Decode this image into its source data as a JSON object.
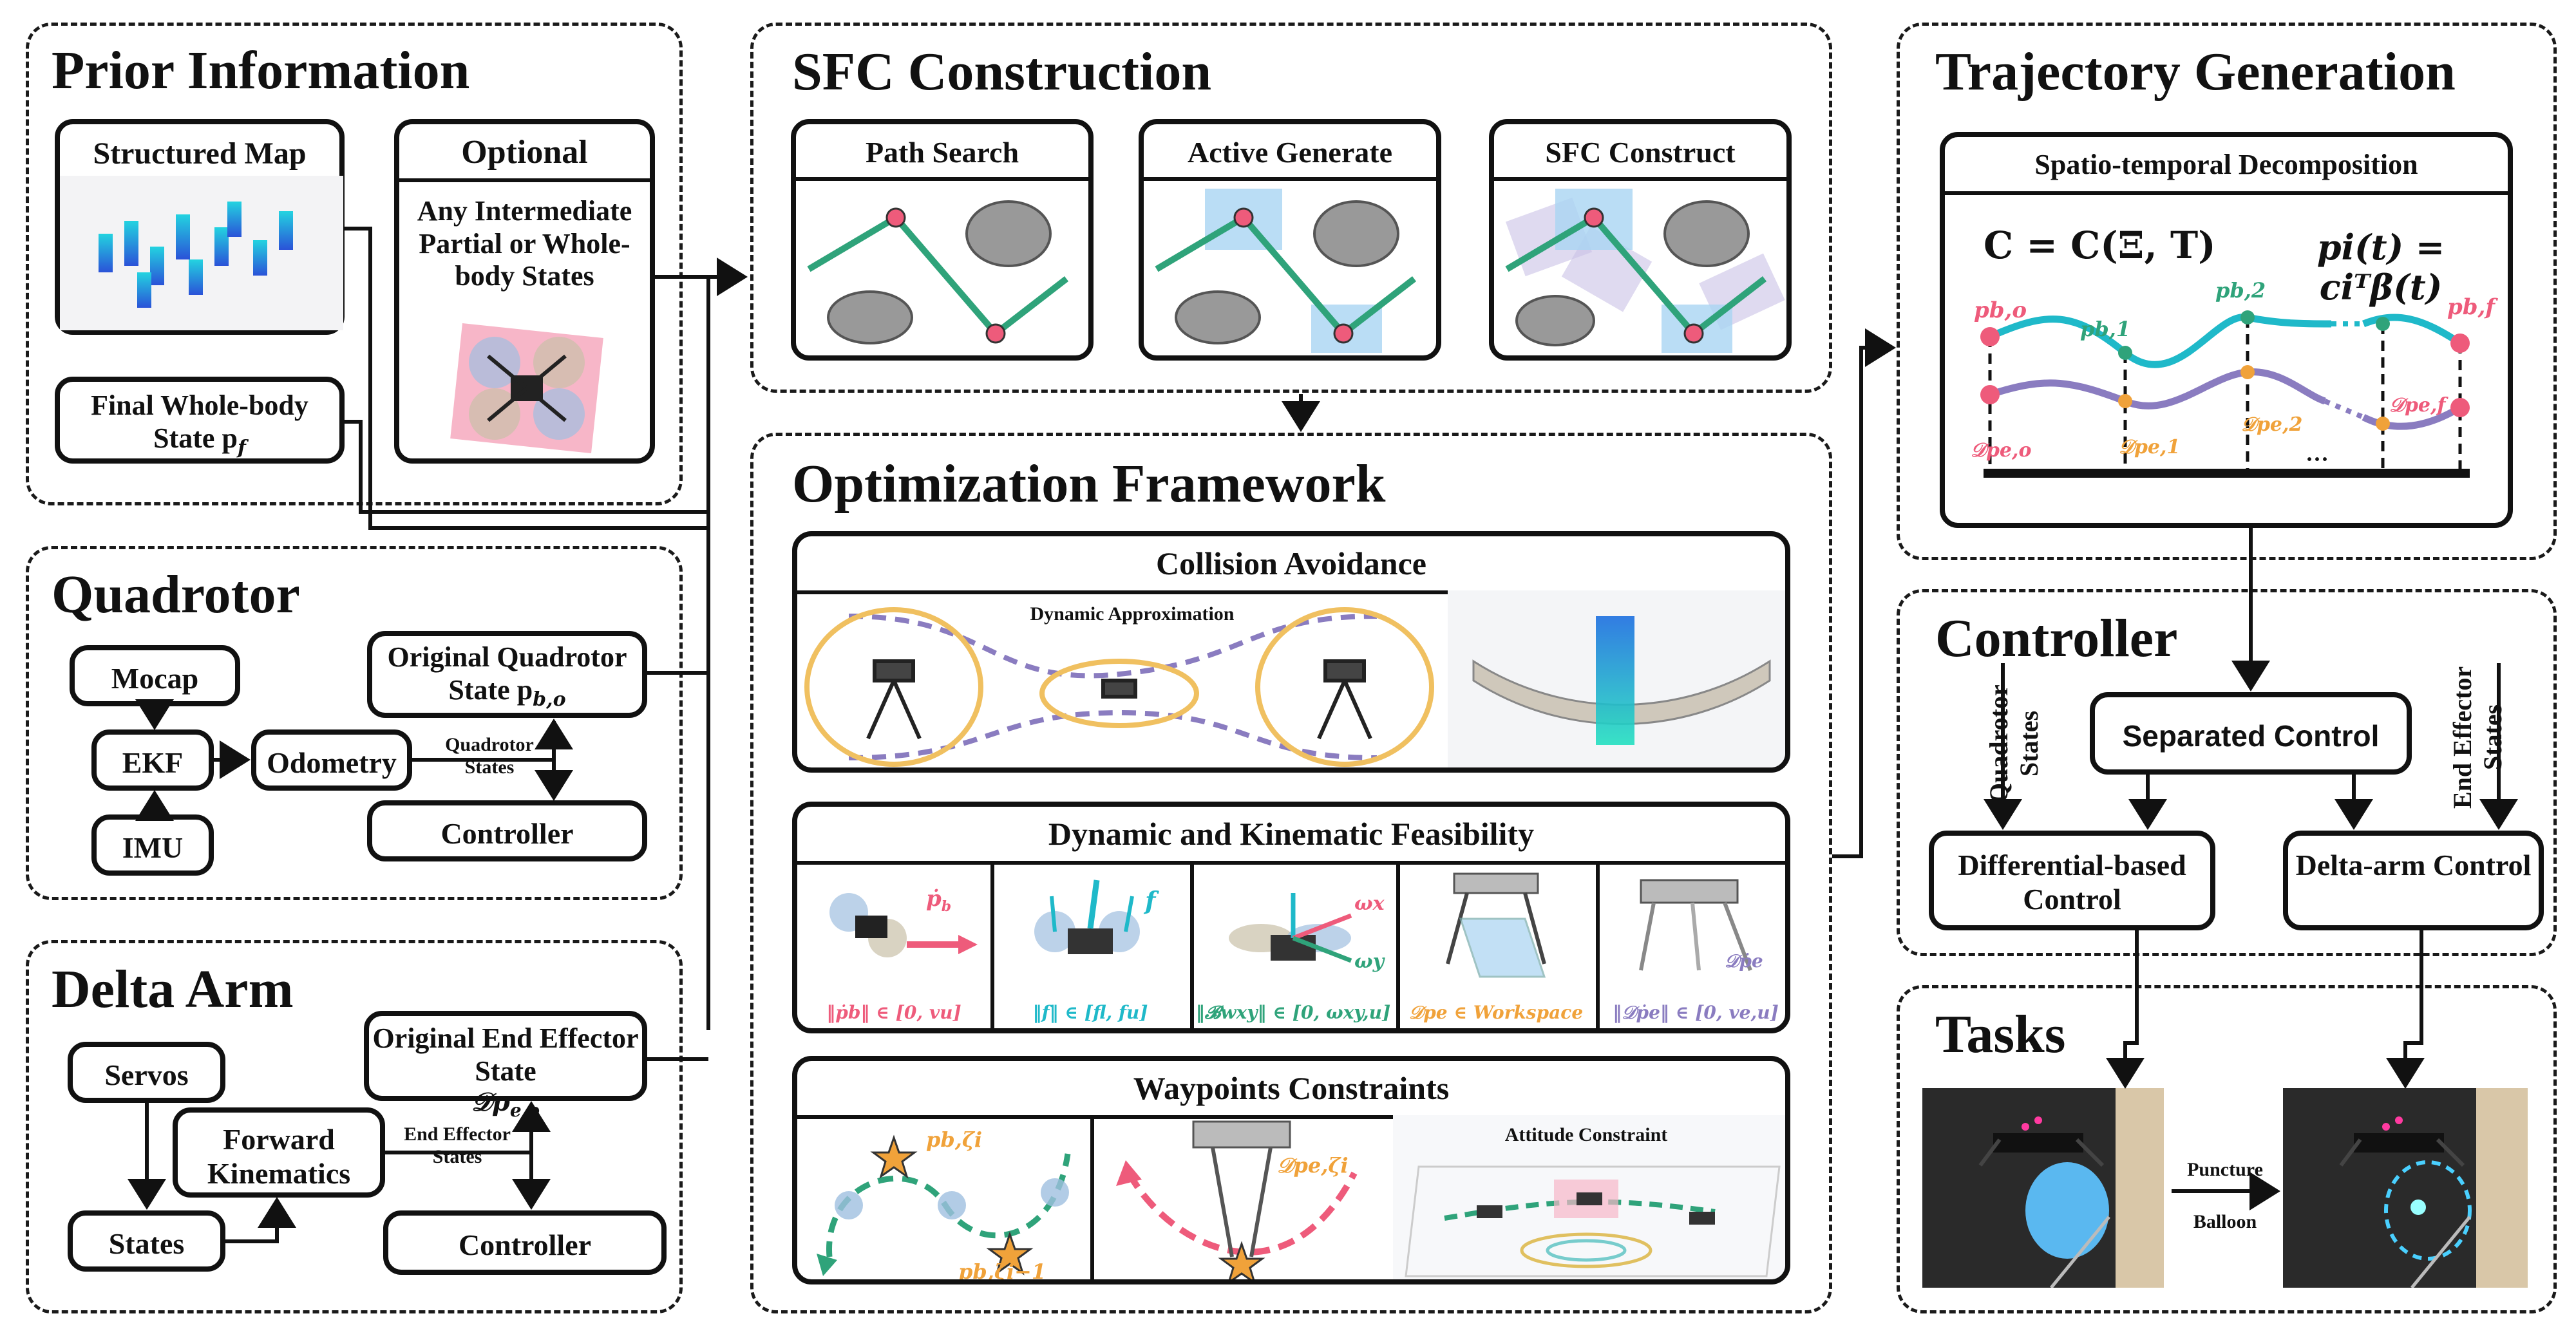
{
  "sections": {
    "prior": {
      "title": "Prior Information",
      "structured_map": "Structured Map",
      "optional": "Optional",
      "optional_body": "Any Intermediate Partial or Whole-body States",
      "final_state": "Final Whole-body State p",
      "final_state_sub": "f"
    },
    "quadrotor": {
      "title": "Quadrotor",
      "mocap": "Mocap",
      "ekf": "EKF",
      "imu": "IMU",
      "odometry": "Odometry",
      "original_state": "Original Quadrotor State p",
      "original_state_sub": "b,o",
      "edge_label_1": "Quadrotor",
      "edge_label_2": "States",
      "controller": "Controller"
    },
    "delta": {
      "title": "Delta Arm",
      "servos": "Servos",
      "forward": "Forward Kinematics",
      "states": "States",
      "original_end": "Original End Effector State",
      "original_end_sym": "𝒟p",
      "original_end_sub": "e,o",
      "edge_label_1": "End Effector",
      "edge_label_2": "States",
      "controller": "Controller"
    },
    "sfc": {
      "title": "SFC Construction",
      "panels": [
        "Path Search",
        "Active Generate",
        "SFC Construct"
      ]
    },
    "opt": {
      "title": "Optimization Framework",
      "collision": {
        "title": "Collision Avoidance",
        "label": "Dynamic Approximation"
      },
      "feasibility": {
        "title": "Dynamic and Kinematic Feasibility",
        "cells": [
          {
            "sym": "ṗ",
            "sub": "b",
            "constraint": "‖ṗb‖ ∈ [0, vu]"
          },
          {
            "sym": "f",
            "sub": "",
            "constraint": "‖f‖ ∈ [fl, fu]"
          },
          {
            "sym": "ωx",
            "sub": "ωy",
            "constraint": "‖𝓑wxy‖ ∈ [0, ωxy,u]"
          },
          {
            "sym": "",
            "sub": "",
            "constraint": "𝒟pe ∈ Workspace"
          },
          {
            "sym": "𝒟ṗe",
            "sub": "",
            "constraint": "‖𝒟ṗe‖ ∈ [0, ve,u]"
          }
        ]
      },
      "waypoints": {
        "title": "Waypoints Constraints",
        "label_top": "pb,ζi",
        "label_bottom": "pb,ζi−1",
        "label_mid": "𝒟pe,ζi",
        "attitude": "Attitude Constraint"
      }
    },
    "traj": {
      "title": "Trajectory Generation",
      "panel_title": "Spatio-temporal Decomposition",
      "eq_left": "C = C(Ξ, T)",
      "eq_right": "pi(t) = ciᵀβ(t)",
      "labels_top": [
        "pb,o",
        "pb,1",
        "pb,2",
        "pb,f"
      ],
      "labels_bottom": [
        "𝒟pe,o",
        "𝒟pe,1",
        "𝒟pe,2",
        "𝒟pe,f"
      ],
      "ellipsis": "···"
    },
    "controller": {
      "title": "Controller",
      "separated": "Separated Control",
      "differential": "Differential-based Control",
      "delta": "Delta-arm Control",
      "left_vert": "Quadrotor States",
      "right_vert": "End Effector States"
    },
    "tasks": {
      "title": "Tasks",
      "arrow_label_1": "Puncture",
      "arrow_label_2": "Balloon"
    }
  },
  "colors": {
    "green": "#2fa37a",
    "teal": "#1fb9c9",
    "purple": "#8a7cc0",
    "orange": "#f0a23a",
    "pink": "#ee5b7b",
    "box_blue": "#a9d4f2"
  }
}
